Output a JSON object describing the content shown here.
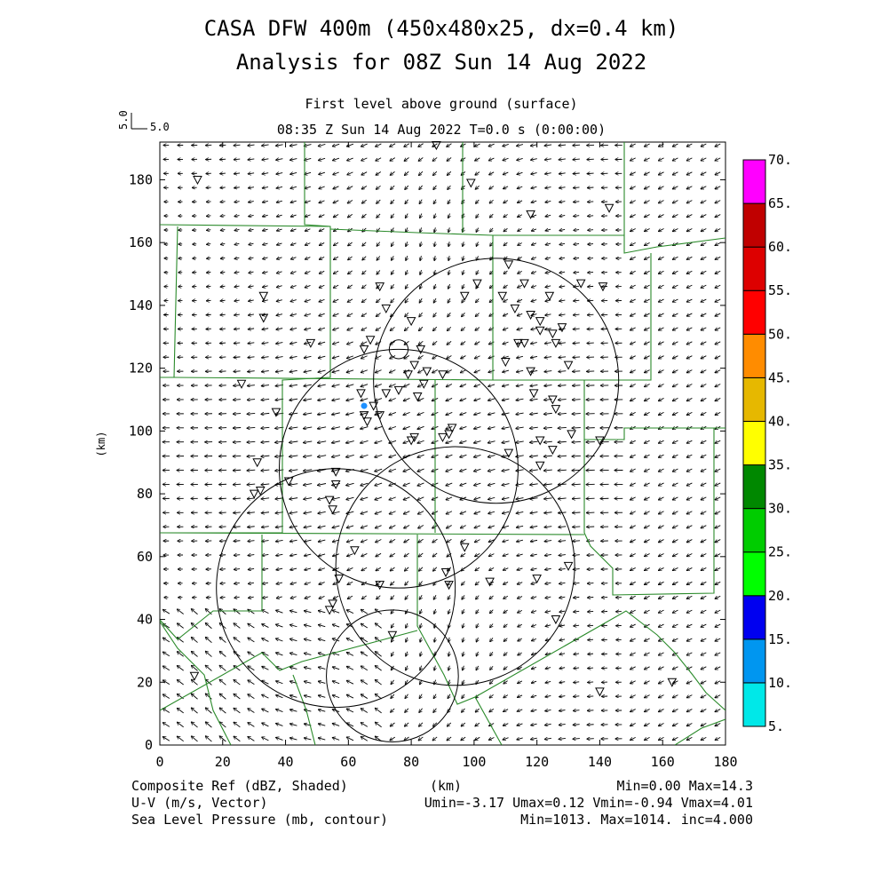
{
  "title_line1": "CASA DFW 400m (450x480x25, dx=0.4 km)",
  "title_line2": "Analysis for 08Z Sun 14 Aug 2022",
  "subtitle1": "First level above ground (surface)",
  "subtitle2": "08:35 Z Sun 14 Aug 2022    T=0.0 s (0:00:00)",
  "vector_scale": {
    "value_y": "5.0",
    "value_x": "5.0"
  },
  "footer": {
    "left1": "Composite Ref (dBZ, Shaded)",
    "left2": "U-V (m/s, Vector)",
    "left3": "Sea Level Pressure (mb, contour)",
    "center1": "(km)",
    "right1": "Min=0.00 Max=14.3",
    "right2": "Umin=-3.17 Umax=0.12 Vmin=-0.94 Vmax=4.01",
    "right3": "Min=1013. Max=1014. inc=4.000"
  },
  "chart_data": {
    "type": "map",
    "xlabel": "",
    "ylabel": "(km)",
    "xlim": [
      0,
      180
    ],
    "ylim": [
      0,
      192
    ],
    "x_ticks": [
      "0",
      "20",
      "40",
      "60",
      "80",
      "100",
      "120",
      "140",
      "160",
      "180"
    ],
    "y_ticks": [
      "0",
      "20",
      "40",
      "60",
      "80",
      "100",
      "120",
      "140",
      "160",
      "180"
    ],
    "colorbar": {
      "labels": [
        "5.",
        "10.",
        "15.",
        "20.",
        "25.",
        "30.",
        "35.",
        "40.",
        "45.",
        "50.",
        "55.",
        "60.",
        "65.",
        "70."
      ],
      "colors": [
        "#00e8e8",
        "#0096f0",
        "#0000f0",
        "#00ff00",
        "#00cc00",
        "#008800",
        "#ffff00",
        "#e6b800",
        "#ff8c00",
        "#ff0000",
        "#dd0000",
        "#c00000",
        "#ff00ff"
      ]
    },
    "field_stats": {
      "reflectivity": {
        "min": 0.0,
        "max": 14.3
      },
      "wind": {
        "umin": -3.17,
        "umax": 0.12,
        "vmin": -0.94,
        "vmax": 4.01
      },
      "pressure": {
        "min": 1013,
        "max": 1014,
        "inc": 4.0
      }
    },
    "radar_rings": [
      {
        "cx": 107,
        "cy": 116,
        "r": 39
      },
      {
        "cx": 76,
        "cy": 88,
        "r": 38
      },
      {
        "cx": 94,
        "cy": 57,
        "r": 38
      },
      {
        "cx": 56,
        "cy": 50,
        "r": 38
      },
      {
        "cx": 74,
        "cy": 22,
        "r": 21
      }
    ],
    "small_ring": {
      "cx": 76,
      "cy": 126,
      "r": 3
    },
    "blue_dot": {
      "x": 65,
      "y": 108
    },
    "stations": [
      [
        12,
        180
      ],
      [
        88,
        191
      ],
      [
        99,
        179
      ],
      [
        118,
        169
      ],
      [
        143,
        171
      ],
      [
        111,
        153
      ],
      [
        116,
        147
      ],
      [
        109,
        143
      ],
      [
        124,
        143
      ],
      [
        134,
        147
      ],
      [
        141,
        146
      ],
      [
        113,
        139
      ],
      [
        118,
        137
      ],
      [
        121,
        135
      ],
      [
        121,
        132
      ],
      [
        125,
        131
      ],
      [
        128,
        133
      ],
      [
        114,
        128
      ],
      [
        116,
        128
      ],
      [
        126,
        128
      ],
      [
        110,
        122
      ],
      [
        118,
        119
      ],
      [
        130,
        121
      ],
      [
        33,
        143
      ],
      [
        33,
        136
      ],
      [
        70,
        146
      ],
      [
        72,
        139
      ],
      [
        67,
        129
      ],
      [
        65,
        126
      ],
      [
        48,
        128
      ],
      [
        80,
        135
      ],
      [
        83,
        126
      ],
      [
        81,
        121
      ],
      [
        79,
        118
      ],
      [
        85,
        119
      ],
      [
        90,
        118
      ],
      [
        84,
        115
      ],
      [
        72,
        112
      ],
      [
        76,
        113
      ],
      [
        82,
        111
      ],
      [
        64,
        112
      ],
      [
        68,
        108
      ],
      [
        65,
        105
      ],
      [
        66,
        103
      ],
      [
        70,
        105
      ],
      [
        26,
        115
      ],
      [
        37,
        106
      ],
      [
        101,
        147
      ],
      [
        97,
        143
      ],
      [
        119,
        112
      ],
      [
        125,
        110
      ],
      [
        126,
        107
      ],
      [
        121,
        97
      ],
      [
        121,
        89
      ],
      [
        125,
        94
      ],
      [
        131,
        99
      ],
      [
        140,
        97
      ],
      [
        111,
        93
      ],
      [
        81,
        98
      ],
      [
        80,
        97
      ],
      [
        90,
        98
      ],
      [
        93,
        101
      ],
      [
        92,
        99
      ],
      [
        31,
        90
      ],
      [
        30,
        80
      ],
      [
        32,
        81
      ],
      [
        41,
        84
      ],
      [
        56,
        87
      ],
      [
        56,
        83
      ],
      [
        54,
        78
      ],
      [
        55,
        75
      ],
      [
        62,
        62
      ],
      [
        57,
        53
      ],
      [
        70,
        51
      ],
      [
        91,
        55
      ],
      [
        97,
        63
      ],
      [
        92,
        51
      ],
      [
        105,
        52
      ],
      [
        120,
        53
      ],
      [
        130,
        57
      ],
      [
        126,
        40
      ],
      [
        54,
        43
      ],
      [
        55,
        45
      ],
      [
        74,
        35
      ],
      [
        11,
        22
      ],
      [
        140,
        17
      ],
      [
        163,
        20
      ]
    ]
  }
}
